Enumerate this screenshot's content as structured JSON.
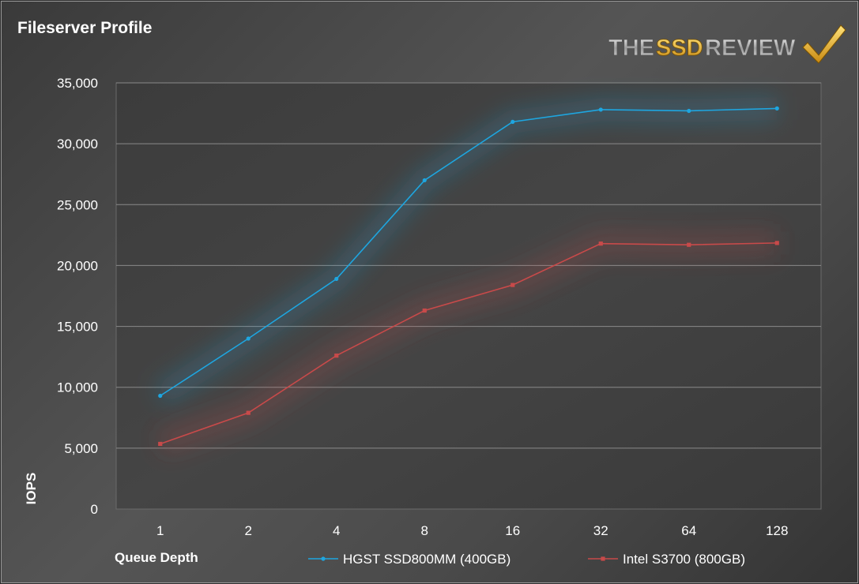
{
  "chart_data": {
    "type": "line",
    "title": "Fileserver Profile",
    "xlabel": "Queue Depth",
    "ylabel": "IOPS",
    "categories": [
      "1",
      "2",
      "4",
      "8",
      "16",
      "32",
      "64",
      "128"
    ],
    "ylim": [
      0,
      35000
    ],
    "yticks": [
      0,
      5000,
      10000,
      15000,
      20000,
      25000,
      30000,
      35000
    ],
    "ytick_labels": [
      "0",
      "5,000",
      "10,000",
      "15,000",
      "20,000",
      "25,000",
      "30,000",
      "35,000"
    ],
    "grid": true,
    "legend_position": "bottom",
    "series": [
      {
        "name": "HGST SSD800MM (400GB)",
        "color": "#1ea6e0",
        "values": [
          9300,
          14000,
          18900,
          27000,
          31800,
          32800,
          32700,
          32900
        ]
      },
      {
        "name": "Intel S3700 (800GB)",
        "color": "#c84a4a",
        "values": [
          5350,
          7900,
          12600,
          16300,
          18400,
          21800,
          21700,
          21850
        ]
      }
    ]
  },
  "logo": {
    "text_the": "THE",
    "text_ssd": "SSD",
    "text_review": "REVIEW",
    "icon": "checkmark-icon"
  }
}
